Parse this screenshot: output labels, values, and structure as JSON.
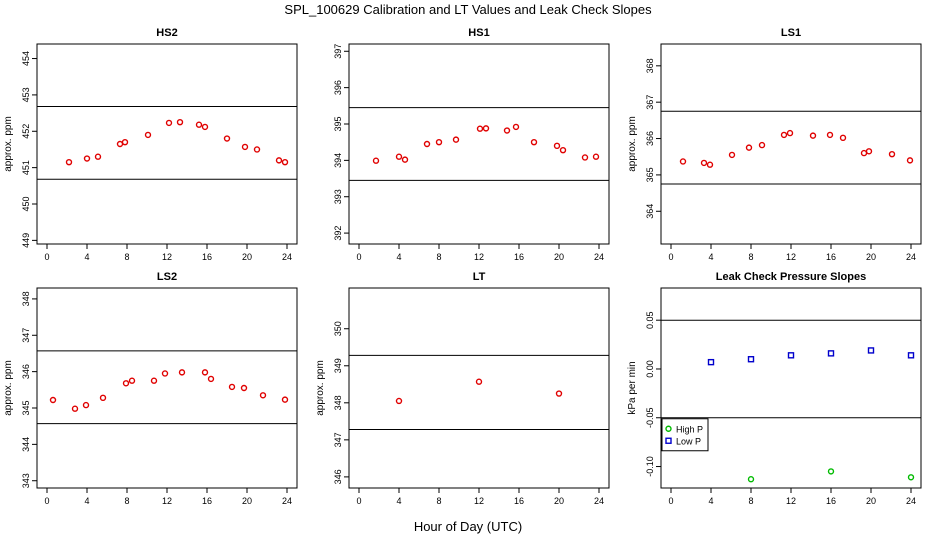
{
  "page": {
    "title": "SPL_100629  Calibration and LT Values and Leak Check Slopes",
    "xlabel": "Hour of Day (UTC)"
  },
  "colors": {
    "cal": "#e00000",
    "high": "#00bb00",
    "low": "#0000cc",
    "axis": "#000000"
  },
  "chart_data": [
    {
      "type": "scatter",
      "title": "HS2",
      "ylabel": "approx. ppm",
      "xlim": [
        -1,
        25
      ],
      "xticks": [
        0,
        4,
        8,
        12,
        16,
        20,
        24
      ],
      "ylim": [
        448.9,
        454.4
      ],
      "yticks": [
        449,
        450,
        451,
        452,
        453,
        454
      ],
      "hlines": [
        450.68,
        452.68
      ],
      "series": [
        {
          "marker": "circle",
          "color": "#e00000",
          "x": [
            2.2,
            4,
            5.1,
            7.3,
            7.8,
            10.1,
            12.2,
            13.3,
            15.2,
            15.8,
            18,
            19.8,
            21,
            23.2,
            23.8
          ],
          "y": [
            451.15,
            451.25,
            451.3,
            451.65,
            451.7,
            451.9,
            452.23,
            452.25,
            452.18,
            452.12,
            451.8,
            451.57,
            451.5,
            451.2,
            451.15
          ]
        }
      ]
    },
    {
      "type": "scatter",
      "title": "HS1",
      "ylabel": "",
      "xlim": [
        -1,
        25
      ],
      "xticks": [
        0,
        4,
        8,
        12,
        16,
        20,
        24
      ],
      "ylim": [
        391.7,
        397.2
      ],
      "yticks": [
        392,
        393,
        394,
        395,
        396,
        397
      ],
      "hlines": [
        393.45,
        395.45
      ],
      "series": [
        {
          "marker": "circle",
          "color": "#e00000",
          "x": [
            1.7,
            4,
            4.6,
            6.8,
            8,
            9.7,
            12.1,
            12.7,
            14.8,
            15.7,
            17.5,
            19.8,
            20.4,
            22.6,
            23.7
          ],
          "y": [
            393.99,
            394.1,
            394.02,
            394.45,
            394.5,
            394.57,
            394.87,
            394.88,
            394.82,
            394.92,
            394.5,
            394.4,
            394.28,
            394.08,
            394.1
          ]
        }
      ]
    },
    {
      "type": "scatter",
      "title": "LS1",
      "ylabel": "approx. ppm",
      "xlim": [
        -1,
        25
      ],
      "xticks": [
        0,
        4,
        8,
        12,
        16,
        20,
        24
      ],
      "ylim": [
        363.1,
        368.6
      ],
      "yticks": [
        364,
        365,
        366,
        367,
        368
      ],
      "hlines": [
        364.75,
        366.75
      ],
      "series": [
        {
          "marker": "circle",
          "color": "#e00000",
          "x": [
            1.2,
            3.3,
            3.9,
            6.1,
            7.8,
            9.1,
            11.3,
            11.9,
            14.2,
            15.9,
            17.2,
            19.3,
            19.8,
            22.1,
            23.9
          ],
          "y": [
            365.37,
            365.33,
            365.28,
            365.55,
            365.75,
            365.82,
            366.1,
            366.15,
            366.08,
            366.1,
            366.02,
            365.6,
            365.65,
            365.57,
            365.4
          ]
        }
      ]
    },
    {
      "type": "scatter",
      "title": "LS2",
      "ylabel": "approx. ppm",
      "xlim": [
        -1,
        25
      ],
      "xticks": [
        0,
        4,
        8,
        12,
        16,
        20,
        24
      ],
      "ylim": [
        342.8,
        348.3
      ],
      "yticks": [
        343,
        344,
        345,
        346,
        347,
        348
      ],
      "hlines": [
        344.57,
        346.57
      ],
      "series": [
        {
          "marker": "circle",
          "color": "#e00000",
          "x": [
            0.6,
            2.8,
            3.9,
            5.6,
            7.9,
            8.5,
            10.7,
            11.8,
            13.5,
            15.8,
            16.4,
            18.5,
            19.7,
            21.6,
            23.8
          ],
          "y": [
            345.22,
            344.98,
            345.08,
            345.28,
            345.68,
            345.75,
            345.75,
            345.95,
            345.98,
            345.98,
            345.8,
            345.58,
            345.55,
            345.35,
            345.23
          ]
        }
      ]
    },
    {
      "type": "scatter",
      "title": "LT",
      "ylabel": "approx. ppm",
      "xlim": [
        -1,
        25
      ],
      "xticks": [
        0,
        4,
        8,
        12,
        16,
        20,
        24
      ],
      "ylim": [
        345.7,
        351.1
      ],
      "yticks": [
        346,
        347,
        348,
        349,
        350
      ],
      "hlines": [
        347.28,
        349.28
      ],
      "series": [
        {
          "marker": "circle",
          "color": "#e00000",
          "x": [
            4,
            12,
            20
          ],
          "y": [
            348.05,
            348.57,
            348.25
          ]
        }
      ]
    },
    {
      "type": "scatter",
      "title": "Leak Check Pressure Slopes",
      "ylabel": "kPa per min",
      "xlim": [
        -1,
        25
      ],
      "xticks": [
        0,
        4,
        8,
        12,
        16,
        20,
        24
      ],
      "ylim": [
        -0.122,
        0.083
      ],
      "yticks": [
        -0.1,
        -0.05,
        0.0,
        0.05
      ],
      "ytick_labels": [
        "-0.10",
        "-0.05",
        "0.00",
        "0.05"
      ],
      "hlines": [
        -0.05,
        0.05
      ],
      "legend": {
        "position": "bottom-left",
        "entries": [
          "High P",
          "Low P"
        ]
      },
      "series": [
        {
          "name": "High P",
          "marker": "circle",
          "color": "#00bb00",
          "x": [
            8,
            16,
            24
          ],
          "y": [
            -0.113,
            -0.105,
            -0.111
          ]
        },
        {
          "name": "Low P",
          "marker": "square",
          "color": "#0000cc",
          "x": [
            4,
            8,
            12,
            16,
            20,
            24
          ],
          "y": [
            0.007,
            0.01,
            0.014,
            0.016,
            0.019,
            0.014
          ]
        }
      ]
    }
  ]
}
